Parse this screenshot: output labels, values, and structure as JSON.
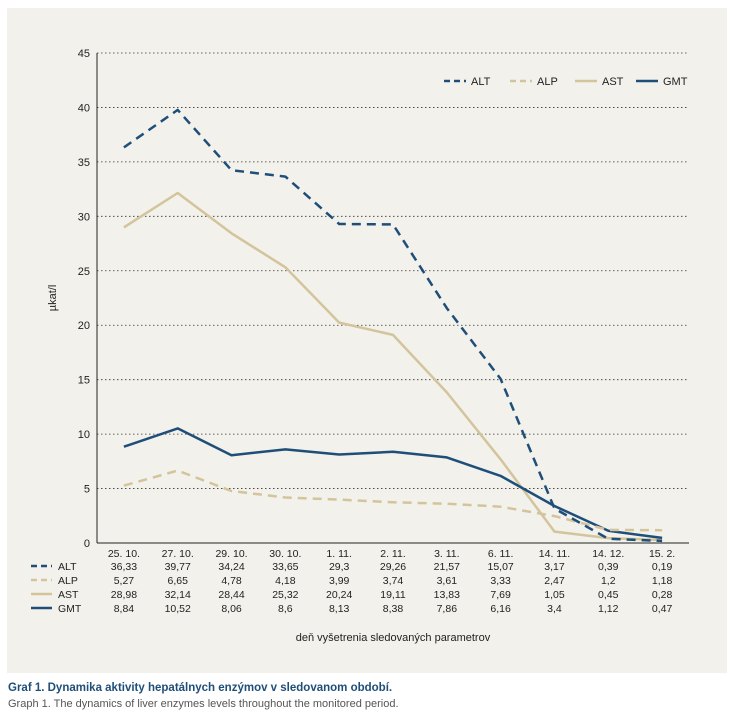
{
  "chart_data": {
    "type": "line",
    "title": "",
    "xlabel": "deň vyšetrenia sledovaných parametrov",
    "ylabel": "µkat/l",
    "ylim": [
      0,
      45
    ],
    "yticks": [
      0,
      5,
      10,
      15,
      20,
      25,
      30,
      35,
      40,
      45
    ],
    "grid": "horizontal dotted",
    "legend_position": "top-right",
    "categories": [
      "25. 10.",
      "27. 10.",
      "29. 10.",
      "30. 10.",
      "1. 11.",
      "2. 11.",
      "3. 11.",
      "6. 11.",
      "14. 11.",
      "14. 12.",
      "15. 2."
    ],
    "series": [
      {
        "name": "ALT",
        "color": "#1f4e79",
        "style": "dashed",
        "values": [
          36.33,
          39.77,
          34.24,
          33.65,
          29.3,
          29.26,
          21.57,
          15.07,
          3.17,
          0.39,
          0.19
        ],
        "labels": [
          "36,33",
          "39,77",
          "34,24",
          "33,65",
          "29,3",
          "29,26",
          "21,57",
          "15,07",
          "3,17",
          "0,39",
          "0,19"
        ]
      },
      {
        "name": "ALP",
        "color": "#d3c49b",
        "style": "dashed",
        "values": [
          5.27,
          6.65,
          4.78,
          4.18,
          3.99,
          3.74,
          3.61,
          3.33,
          2.47,
          1.2,
          1.18
        ],
        "labels": [
          "5,27",
          "6,65",
          "4,78",
          "4,18",
          "3,99",
          "3,74",
          "3,61",
          "3,33",
          "2,47",
          "1,2",
          "1,18"
        ]
      },
      {
        "name": "AST",
        "color": "#d3c49b",
        "style": "solid",
        "values": [
          28.98,
          32.14,
          28.44,
          25.32,
          20.24,
          19.11,
          13.83,
          7.69,
          1.05,
          0.45,
          0.28
        ],
        "labels": [
          "28,98",
          "32,14",
          "28,44",
          "25,32",
          "20,24",
          "19,11",
          "13,83",
          "7,69",
          "1,05",
          "0,45",
          "0,28"
        ]
      },
      {
        "name": "GMT",
        "color": "#1f4e79",
        "style": "solid",
        "values": [
          8.84,
          10.52,
          8.06,
          8.6,
          8.13,
          8.38,
          7.86,
          6.16,
          3.4,
          1.12,
          0.47
        ],
        "labels": [
          "8,84",
          "10,52",
          "8,06",
          "8,6",
          "8,13",
          "8,38",
          "7,86",
          "6,16",
          "3,4",
          "1,12",
          "0,47"
        ]
      }
    ]
  },
  "caption": {
    "title": "Graf 1. Dynamika aktivity hepatálnych enzýmov v sledovanom období.",
    "subtitle": "Graph 1. The dynamics of liver enzymes levels throughout the monitored period."
  }
}
